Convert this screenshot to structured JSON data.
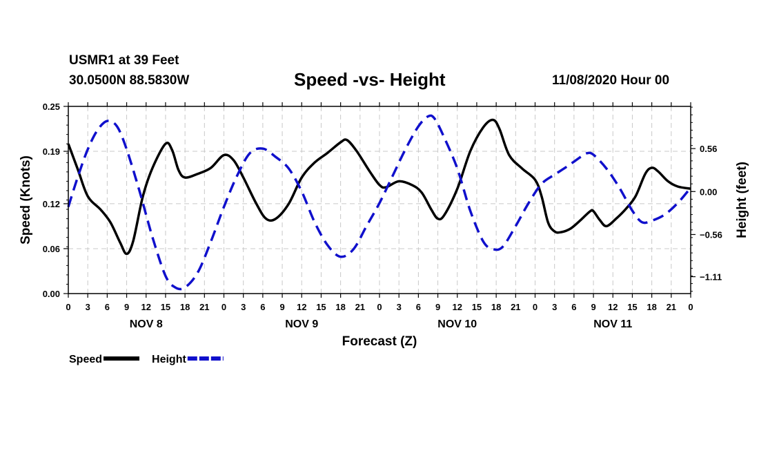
{
  "header": {
    "station": "USMR1 at 39 Feet",
    "coords": "30.0500N 88.5830W",
    "title": "Speed -vs- Height",
    "timestamp": "11/08/2020 Hour 00"
  },
  "chart_data": {
    "type": "line",
    "title": "Speed -vs- Height",
    "xlabel": "Forecast (Z)",
    "ylabel": "Speed (Knots)",
    "y2label": "Height (feet)",
    "xlim": [
      0,
      96
    ],
    "ylim": [
      0.0,
      0.25
    ],
    "y2lim": [
      -1.33,
      1.11
    ],
    "grid": true,
    "y_ticks": [
      0.0,
      0.06,
      0.12,
      0.19,
      0.25
    ],
    "y_tick_labels": [
      "0.00",
      "0.06",
      "0.12",
      "0.19",
      "0.25"
    ],
    "y2_ticks": [
      0.56,
      0.0,
      -0.56,
      -1.11
    ],
    "y2_tick_labels": [
      "0.56",
      "0.00",
      "−0.56",
      "−1.11"
    ],
    "x_ticks": [
      0,
      3,
      6,
      9,
      12,
      15,
      18,
      21,
      24,
      27,
      30,
      33,
      36,
      39,
      42,
      45,
      48,
      51,
      54,
      57,
      60,
      63,
      66,
      69,
      72,
      75,
      78,
      81,
      84,
      87,
      90,
      93,
      96
    ],
    "x_tick_labels": [
      "0",
      "3",
      "6",
      "9",
      "12",
      "15",
      "18",
      "21",
      "0",
      "3",
      "6",
      "9",
      "12",
      "15",
      "18",
      "21",
      "0",
      "3",
      "6",
      "9",
      "12",
      "15",
      "18",
      "21",
      "0",
      "3",
      "6",
      "9",
      "12",
      "15",
      "18",
      "21",
      "0"
    ],
    "day_labels": [
      {
        "x": 12,
        "label": "NOV 8"
      },
      {
        "x": 36,
        "label": "NOV 9"
      },
      {
        "x": 60,
        "label": "NOV 10"
      },
      {
        "x": 84,
        "label": "NOV 11"
      }
    ],
    "legend": {
      "position": "bottom-left"
    },
    "series": [
      {
        "name": "Speed",
        "axis": "left",
        "color": "#000000",
        "style": "solid",
        "points": [
          [
            0,
            0.2
          ],
          [
            1.5,
            0.165
          ],
          [
            3,
            0.13
          ],
          [
            5,
            0.112
          ],
          [
            6.5,
            0.095
          ],
          [
            8,
            0.068
          ],
          [
            9,
            0.053
          ],
          [
            10,
            0.07
          ],
          [
            11.5,
            0.13
          ],
          [
            13,
            0.168
          ],
          [
            15,
            0.2
          ],
          [
            16,
            0.192
          ],
          [
            17,
            0.165
          ],
          [
            18,
            0.155
          ],
          [
            20,
            0.16
          ],
          [
            22,
            0.168
          ],
          [
            24,
            0.185
          ],
          [
            25.5,
            0.178
          ],
          [
            27,
            0.155
          ],
          [
            29,
            0.12
          ],
          [
            30.5,
            0.1
          ],
          [
            32,
            0.1
          ],
          [
            34,
            0.12
          ],
          [
            36,
            0.155
          ],
          [
            38,
            0.175
          ],
          [
            40,
            0.188
          ],
          [
            42,
            0.202
          ],
          [
            43,
            0.205
          ],
          [
            44.5,
            0.19
          ],
          [
            46.5,
            0.163
          ],
          [
            48,
            0.145
          ],
          [
            49,
            0.142
          ],
          [
            51,
            0.15
          ],
          [
            53,
            0.145
          ],
          [
            54.5,
            0.135
          ],
          [
            56,
            0.112
          ],
          [
            57,
            0.1
          ],
          [
            58,
            0.105
          ],
          [
            60,
            0.14
          ],
          [
            62,
            0.19
          ],
          [
            64,
            0.222
          ],
          [
            65.5,
            0.232
          ],
          [
            66.5,
            0.22
          ],
          [
            68,
            0.185
          ],
          [
            70,
            0.167
          ],
          [
            72,
            0.152
          ],
          [
            73,
            0.13
          ],
          [
            74,
            0.095
          ],
          [
            75,
            0.083
          ],
          [
            76,
            0.082
          ],
          [
            77.5,
            0.087
          ],
          [
            79,
            0.098
          ],
          [
            80.5,
            0.11
          ],
          [
            81,
            0.11
          ],
          [
            82,
            0.098
          ],
          [
            83,
            0.09
          ],
          [
            84.5,
            0.1
          ],
          [
            86,
            0.113
          ],
          [
            87.5,
            0.13
          ],
          [
            89,
            0.16
          ],
          [
            90,
            0.168
          ],
          [
            91,
            0.163
          ],
          [
            92.5,
            0.15
          ],
          [
            94,
            0.143
          ],
          [
            96,
            0.14
          ]
        ]
      },
      {
        "name": "Height",
        "axis": "right",
        "color": "#1010cc",
        "style": "dashed",
        "points": [
          [
            0,
            -0.2
          ],
          [
            1.5,
            0.2
          ],
          [
            3,
            0.55
          ],
          [
            4.5,
            0.8
          ],
          [
            6,
            0.92
          ],
          [
            7.5,
            0.85
          ],
          [
            9,
            0.55
          ],
          [
            11,
            0.0
          ],
          [
            13,
            -0.6
          ],
          [
            15,
            -1.1
          ],
          [
            16.5,
            -1.25
          ],
          [
            18,
            -1.25
          ],
          [
            20,
            -1.05
          ],
          [
            22,
            -0.65
          ],
          [
            24,
            -0.2
          ],
          [
            26,
            0.2
          ],
          [
            28,
            0.5
          ],
          [
            30,
            0.56
          ],
          [
            32,
            0.45
          ],
          [
            34,
            0.3
          ],
          [
            36,
            0.0
          ],
          [
            38,
            -0.4
          ],
          [
            40,
            -0.7
          ],
          [
            42,
            -0.85
          ],
          [
            44,
            -0.75
          ],
          [
            46,
            -0.45
          ],
          [
            48,
            -0.15
          ],
          [
            50,
            0.2
          ],
          [
            52,
            0.55
          ],
          [
            54,
            0.85
          ],
          [
            55.5,
            0.98
          ],
          [
            56.5,
            0.95
          ],
          [
            58,
            0.7
          ],
          [
            60,
            0.3
          ],
          [
            62,
            -0.25
          ],
          [
            64,
            -0.65
          ],
          [
            65.5,
            -0.75
          ],
          [
            67,
            -0.72
          ],
          [
            69,
            -0.45
          ],
          [
            71,
            -0.15
          ],
          [
            73,
            0.1
          ],
          [
            75,
            0.22
          ],
          [
            77,
            0.33
          ],
          [
            79,
            0.45
          ],
          [
            80,
            0.5
          ],
          [
            81,
            0.48
          ],
          [
            83,
            0.3
          ],
          [
            85,
            0.05
          ],
          [
            87,
            -0.25
          ],
          [
            88.5,
            -0.4
          ],
          [
            90,
            -0.38
          ],
          [
            92,
            -0.3
          ],
          [
            94,
            -0.15
          ],
          [
            96,
            0.05
          ]
        ]
      }
    ]
  }
}
